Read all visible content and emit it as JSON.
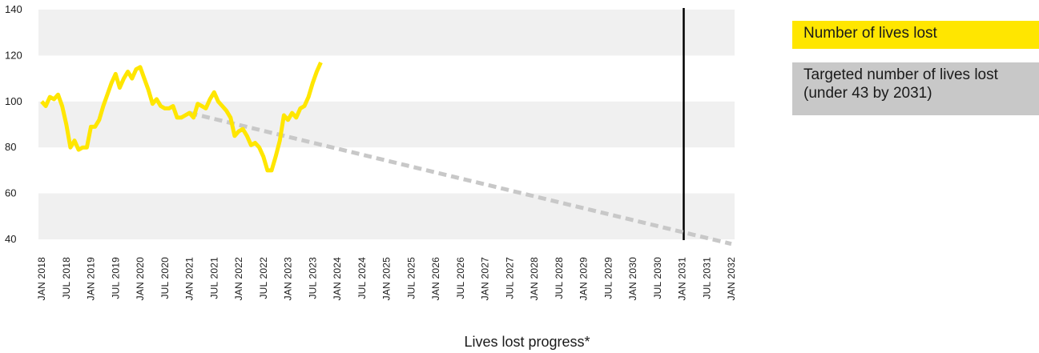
{
  "colors": {
    "actual_line": "#ffe600",
    "target_line": "#c8c8c8",
    "band": "#f0f0f0",
    "marker_line": "#000000"
  },
  "legend": {
    "actual": "Number of lives lost",
    "target": "Targeted number of lives lost (under 43 by 2031)"
  },
  "chart_data": {
    "type": "line",
    "xlabel": "Lives lost progress*",
    "ylabel": "",
    "ylim": [
      40,
      140
    ],
    "yticks": [
      40,
      60,
      80,
      100,
      120,
      140
    ],
    "categories": [
      "JAN 2018",
      "JUL 2018",
      "JAN 2019",
      "JUL 2019",
      "JAN 2020",
      "JUL 2020",
      "JAN 2021",
      "JUL 2021",
      "JAN 2022",
      "JUL 2022",
      "JAN 2023",
      "JUL 2023",
      "JAN 2024",
      "JUL 2024",
      "JAN 2025",
      "JUL 2025",
      "JAN 2026",
      "JUL 2026",
      "JAN 2027",
      "JUL 2027",
      "JAN 2028",
      "JUL 2028",
      "JAN 2029",
      "JUL 2029",
      "JAN 2030",
      "JUL 2030",
      "JAN 2031",
      "JUL 2031",
      "JAN 2032"
    ],
    "grid": "alternating horizontal bands",
    "vertical_marker": "JAN 2031",
    "series": [
      {
        "name": "Number of lives lost",
        "style": "solid",
        "x": [
          "2018-01",
          "2018-02",
          "2018-03",
          "2018-04",
          "2018-05",
          "2018-06",
          "2018-07",
          "2018-08",
          "2018-09",
          "2018-10",
          "2018-11",
          "2018-12",
          "2019-01",
          "2019-02",
          "2019-03",
          "2019-04",
          "2019-05",
          "2019-06",
          "2019-07",
          "2019-08",
          "2019-09",
          "2019-10",
          "2019-11",
          "2019-12",
          "2020-01",
          "2020-02",
          "2020-03",
          "2020-04",
          "2020-05",
          "2020-06",
          "2020-07",
          "2020-08",
          "2020-09",
          "2020-10",
          "2020-11",
          "2020-12",
          "2021-01",
          "2021-02",
          "2021-03",
          "2021-04",
          "2021-05",
          "2021-06",
          "2021-07",
          "2021-08",
          "2021-09",
          "2021-10",
          "2021-11",
          "2021-12",
          "2022-01",
          "2022-02",
          "2022-03",
          "2022-04",
          "2022-05",
          "2022-06",
          "2022-07",
          "2022-08",
          "2022-09",
          "2022-10",
          "2022-11",
          "2022-12",
          "2023-01",
          "2023-02",
          "2023-03",
          "2023-04",
          "2023-05",
          "2023-06",
          "2023-07",
          "2023-08",
          "2023-09",
          "2023-10",
          "2023-11",
          "2023-12",
          "2024-01"
        ],
        "values": [
          100,
          98,
          102,
          101,
          103,
          98,
          90,
          80,
          83,
          79,
          80,
          80,
          89,
          89,
          92,
          98,
          103,
          108,
          112,
          106,
          110,
          113,
          110,
          114,
          115,
          110,
          105,
          99,
          101,
          98,
          97,
          97,
          98,
          93,
          93,
          94,
          95,
          93,
          99,
          98,
          97,
          101,
          104,
          100,
          98,
          96,
          93,
          85,
          87,
          88,
          85,
          81,
          82,
          80,
          76,
          70,
          70,
          76,
          83,
          94,
          92,
          95,
          93,
          97,
          98,
          102,
          108,
          113,
          117,
          null,
          null,
          null,
          null
        ]
      },
      {
        "name": "Targeted number of lives lost (under 43 by 2031)",
        "style": "dashed",
        "x": [
          "2021-01",
          "2032-01"
        ],
        "values": [
          95,
          38
        ]
      }
    ]
  }
}
